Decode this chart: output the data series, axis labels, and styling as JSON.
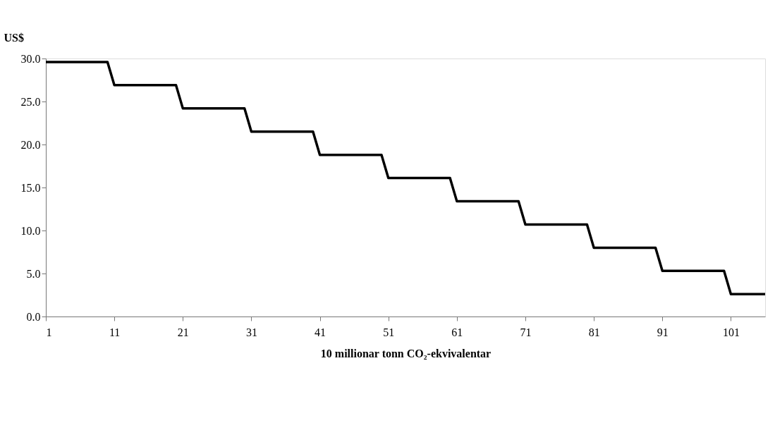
{
  "chart_data": {
    "type": "line",
    "ylabel": "US$",
    "xlabel": "10 millionar tonn CO₂-ekvivalentar",
    "series": [
      {
        "color": "#000000",
        "x": [
          1,
          10,
          11,
          20,
          21,
          30,
          31,
          40,
          41,
          50,
          51,
          60,
          61,
          70,
          71,
          80,
          81,
          90,
          91,
          100,
          101,
          106
        ],
        "values": [
          29.6,
          29.6,
          26.9,
          26.9,
          24.2,
          24.2,
          21.5,
          21.5,
          18.8,
          18.8,
          16.1,
          16.1,
          13.4,
          13.4,
          10.7,
          10.7,
          8.0,
          8.0,
          5.3,
          5.3,
          2.6,
          2.6
        ]
      }
    ],
    "xlim": [
      1,
      106
    ],
    "xticks": [
      1,
      11,
      21,
      31,
      41,
      51,
      61,
      71,
      81,
      91,
      101
    ],
    "ylim": [
      0,
      30
    ],
    "yticks": [
      {
        "value": 0,
        "label": "0.0"
      },
      {
        "value": 5,
        "label": "5.0"
      },
      {
        "value": 10,
        "label": "10.0"
      },
      {
        "value": 15,
        "label": "15.0"
      },
      {
        "value": 20,
        "label": "20.0"
      },
      {
        "value": 25,
        "label": "25.0"
      },
      {
        "value": 30,
        "label": "30.0"
      }
    ],
    "grid": false,
    "marker": "none",
    "line_style": "solid"
  }
}
